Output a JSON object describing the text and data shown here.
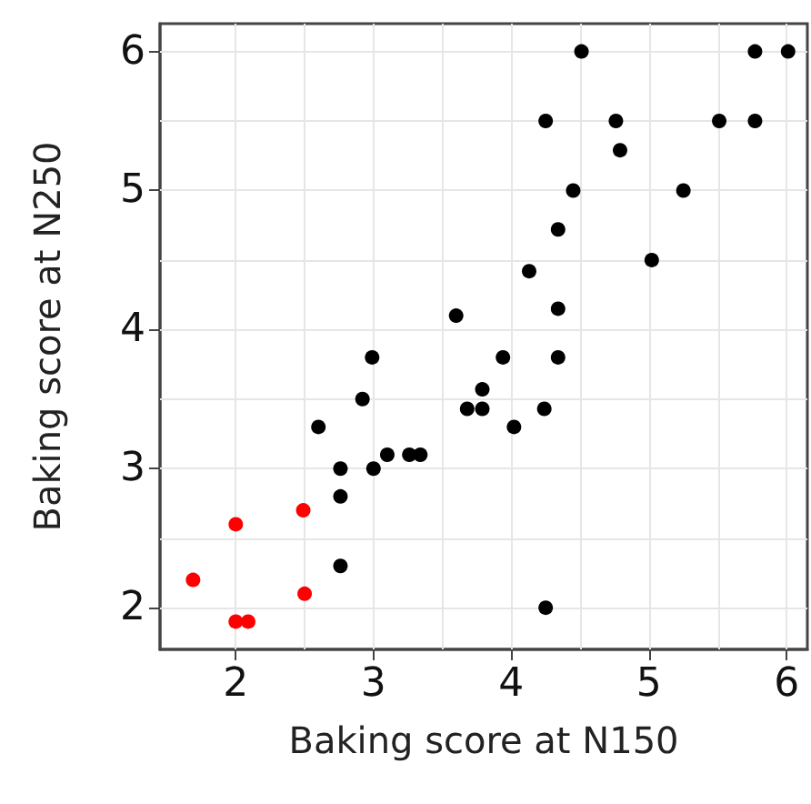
{
  "chart_data": {
    "type": "scatter",
    "xlabel": "Baking score at N150",
    "ylabel": "Baking score at N250",
    "xlim": [
      1.45,
      6.15
    ],
    "ylim": [
      1.7,
      6.2
    ],
    "xticks": [
      2,
      3,
      4,
      5,
      6
    ],
    "yticks": [
      2,
      3,
      4,
      5,
      6
    ],
    "grid": true,
    "marker": "circle",
    "series": [
      {
        "color": "#ff0000",
        "x": [
          1.69,
          2.0,
          2.0,
          2.09,
          2.49,
          2.5
        ],
        "values": [
          2.2,
          2.6,
          1.9,
          1.9,
          2.7,
          2.1
        ]
      },
      {
        "color": "#000000",
        "x": [
          2.6,
          2.76,
          2.76,
          2.76,
          2.92,
          2.99,
          3.0,
          3.1,
          3.26,
          3.34,
          3.6,
          3.68,
          3.79,
          3.79,
          3.94,
          4.02,
          4.24,
          4.34,
          4.25,
          4.51,
          5.77,
          6.01,
          4.25,
          4.76,
          5.51,
          5.77,
          4.79,
          4.45,
          5.25,
          4.34,
          5.02,
          4.13,
          4.34
        ],
        "values": [
          3.3,
          3.0,
          2.8,
          2.3,
          3.5,
          3.8,
          3.0,
          3.1,
          3.1,
          3.1,
          4.1,
          3.43,
          3.43,
          3.57,
          3.8,
          3.3,
          3.43,
          3.8,
          2.0,
          6.0,
          6.0,
          6.0,
          5.5,
          5.5,
          5.5,
          5.5,
          5.29,
          5.0,
          5.0,
          4.72,
          4.5,
          4.42,
          4.15
        ]
      }
    ]
  }
}
